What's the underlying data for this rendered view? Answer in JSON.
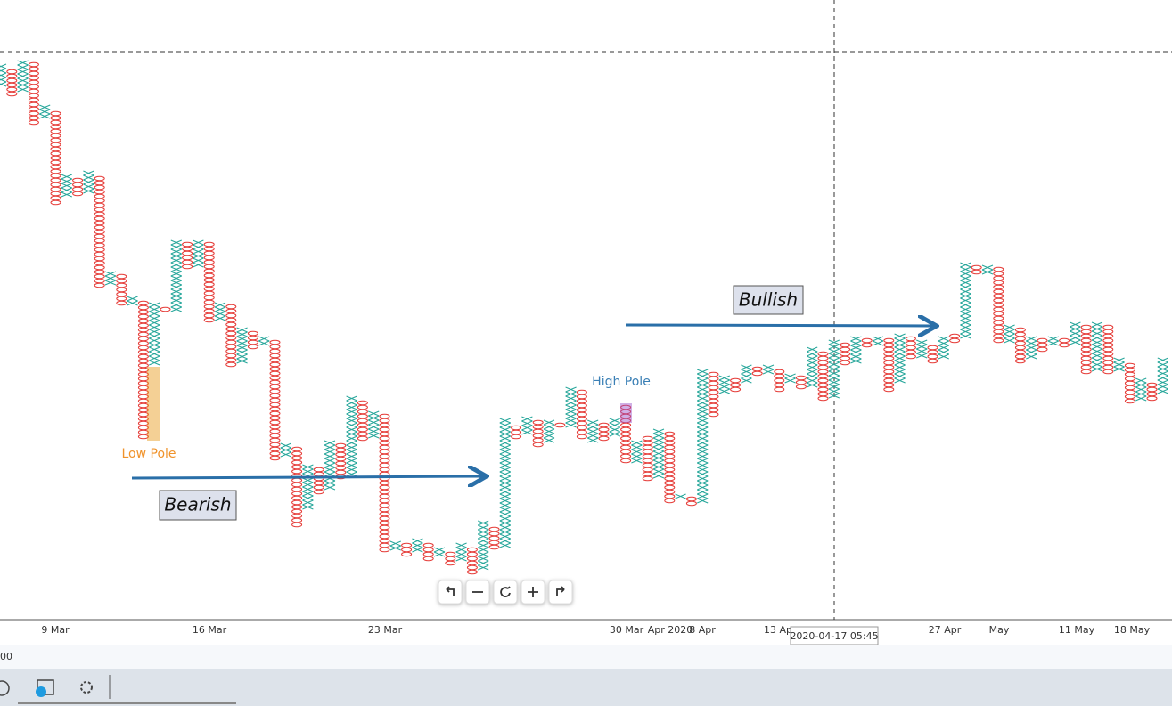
{
  "chart_data": {
    "type": "pointfigure",
    "kinds": [
      "X",
      "O",
      "X",
      "O",
      "X",
      "O",
      "X",
      "O",
      "X",
      "O",
      "X",
      "O",
      "X",
      "O",
      "X",
      "O",
      "X",
      "O",
      "X",
      "O",
      "X",
      "O",
      "X",
      "O",
      "X",
      "O",
      "X",
      "O",
      "X",
      "O",
      "X",
      "O",
      "X",
      "O",
      "X",
      "O",
      "X",
      "O",
      "X",
      "O",
      "X",
      "O",
      "X",
      "O",
      "X",
      "O",
      "X",
      "O",
      "X",
      "O",
      "X",
      "O",
      "X",
      "O",
      "X",
      "O",
      "X",
      "O",
      "X",
      "O",
      "X",
      "O",
      "X",
      "O",
      "X",
      "O",
      "X",
      "O",
      "X",
      "O",
      "X",
      "O",
      "X",
      "O",
      "X",
      "O",
      "X",
      "O",
      "X",
      "O",
      "X",
      "O",
      "X",
      "O",
      "X",
      "O",
      "X",
      "O",
      "X",
      "O",
      "X",
      "O",
      "X",
      "O",
      "X",
      "O",
      "X",
      "O",
      "X",
      "O",
      "X",
      "O",
      "X",
      "O",
      "X",
      "O",
      "X"
    ],
    "highs": [
      628,
      622,
      632,
      630,
      582,
      575,
      504,
      500,
      508,
      502,
      395,
      392,
      367,
      362,
      360,
      355,
      430,
      428,
      430,
      428,
      360,
      358,
      332,
      328,
      322,
      318,
      202,
      198,
      178,
      175,
      205,
      202,
      255,
      250,
      238,
      235,
      92,
      90,
      95,
      90,
      85,
      80,
      90,
      85,
      115,
      108,
      230,
      222,
      232,
      228,
      228,
      225,
      265,
      262,
      228,
      225,
      230,
      245,
      205,
      210,
      218,
      215,
      145,
      142,
      285,
      282,
      278,
      275,
      290,
      288,
      290,
      285,
      280,
      278,
      310,
      305,
      318,
      315,
      322,
      320,
      322,
      320,
      325,
      322,
      318,
      312,
      322,
      325,
      405,
      402,
      402,
      400,
      335,
      332,
      322,
      320,
      322,
      320,
      338,
      335,
      338,
      335,
      298,
      292,
      275,
      270,
      298
    ],
    "lows": [
      605,
      590,
      595,
      560,
      565,
      470,
      478,
      480,
      485,
      378,
      378,
      355,
      355,
      205,
      290,
      348,
      350,
      398,
      400,
      338,
      340,
      290,
      290,
      310,
      310,
      185,
      185,
      110,
      130,
      145,
      150,
      160,
      165,
      205,
      208,
      80,
      82,
      75,
      80,
      72,
      75,
      65,
      70,
      55,
      60,
      82,
      85,
      208,
      212,
      200,
      205,
      218,
      218,
      205,
      205,
      205,
      208,
      180,
      180,
      162,
      165,
      135,
      138,
      132,
      135,
      230,
      260,
      262,
      270,
      278,
      280,
      262,
      268,
      265,
      265,
      248,
      252,
      288,
      290,
      308,
      310,
      258,
      268,
      298,
      300,
      292,
      295,
      315,
      318,
      390,
      392,
      315,
      315,
      292,
      295,
      305,
      310,
      310,
      315,
      278,
      282,
      278,
      282,
      245,
      248,
      252,
      258
    ],
    "x_colors": {
      "X": "#26a69a",
      "O": "#e53935"
    },
    "ylim": [
      5,
      700
    ],
    "x_labels": [
      "9 Mar",
      "16 Mar",
      "23 Mar",
      "30 Mar",
      "Apr 2020",
      "8 Apr",
      "13 Ap",
      "27 Apr",
      "May",
      "11 May",
      "18 May"
    ],
    "annotations": {
      "low_pole": "Low Pole",
      "high_pole": "High Pole",
      "bearish": "Bearish",
      "bullish": "Bullish"
    },
    "crosshair_label": "2020-04-17 05:45",
    "footer_text": "00"
  }
}
